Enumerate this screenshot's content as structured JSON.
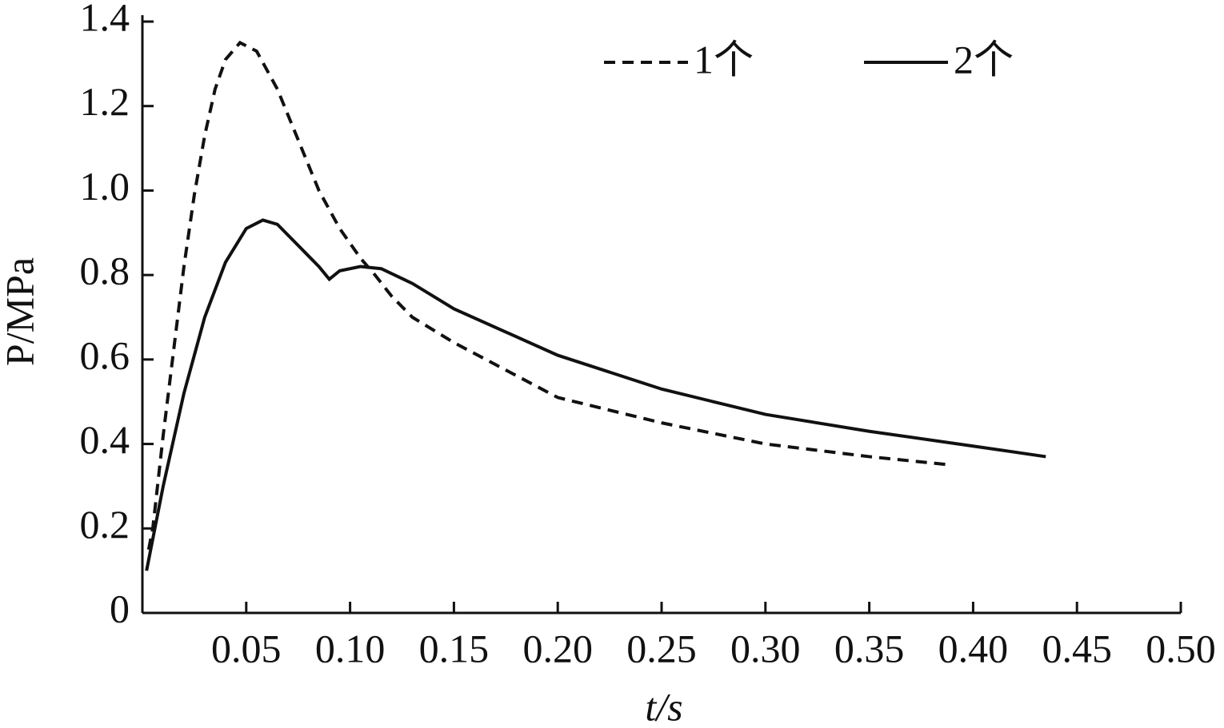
{
  "chart_data": {
    "type": "line",
    "x_label": "t/s",
    "y_label": "P/MPa",
    "xlim": [
      0,
      0.5
    ],
    "ylim": [
      0,
      1.4
    ],
    "xticks": [
      0.05,
      {
        "value": 0.1,
        "label": "0.10"
      },
      0.15,
      {
        "value": 0.2,
        "label": "0.20"
      },
      0.25,
      {
        "value": 0.3,
        "label": "0.30"
      },
      0.35,
      {
        "value": 0.4,
        "label": "0.40"
      },
      0.45,
      {
        "value": 0.5,
        "label": "0.50"
      }
    ],
    "yticks": [
      0,
      0.2,
      0.4,
      0.6,
      0.8,
      {
        "value": 1.0,
        "label": "1.0"
      },
      1.2,
      1.4
    ],
    "legend_position": "top",
    "series": [
      {
        "name": "1个",
        "color": "#111111",
        "dash": true,
        "x": [
          0.003,
          0.005,
          0.01,
          0.02,
          0.025,
          0.03,
          0.035,
          0.04,
          0.047,
          0.055,
          0.065,
          0.075,
          0.085,
          0.095,
          0.105,
          0.112,
          0.12,
          0.13,
          0.15,
          0.2,
          0.25,
          0.3,
          0.35,
          0.39
        ],
        "values": [
          0.15,
          0.2,
          0.42,
          0.82,
          0.99,
          1.13,
          1.24,
          1.31,
          1.35,
          1.33,
          1.24,
          1.12,
          1.0,
          0.91,
          0.84,
          0.8,
          0.75,
          0.7,
          0.64,
          0.51,
          0.45,
          0.4,
          0.37,
          0.35
        ]
      },
      {
        "name": "2个",
        "color": "#111111",
        "dash": false,
        "x": [
          0.002,
          0.01,
          0.02,
          0.03,
          0.04,
          0.05,
          0.058,
          0.065,
          0.075,
          0.085,
          0.09,
          0.095,
          0.105,
          0.115,
          0.13,
          0.15,
          0.2,
          0.25,
          0.3,
          0.35,
          0.4,
          0.435
        ],
        "values": [
          0.1,
          0.3,
          0.52,
          0.7,
          0.83,
          0.91,
          0.93,
          0.92,
          0.87,
          0.82,
          0.79,
          0.81,
          0.82,
          0.815,
          0.78,
          0.72,
          0.61,
          0.53,
          0.47,
          0.43,
          0.395,
          0.37
        ]
      }
    ]
  }
}
